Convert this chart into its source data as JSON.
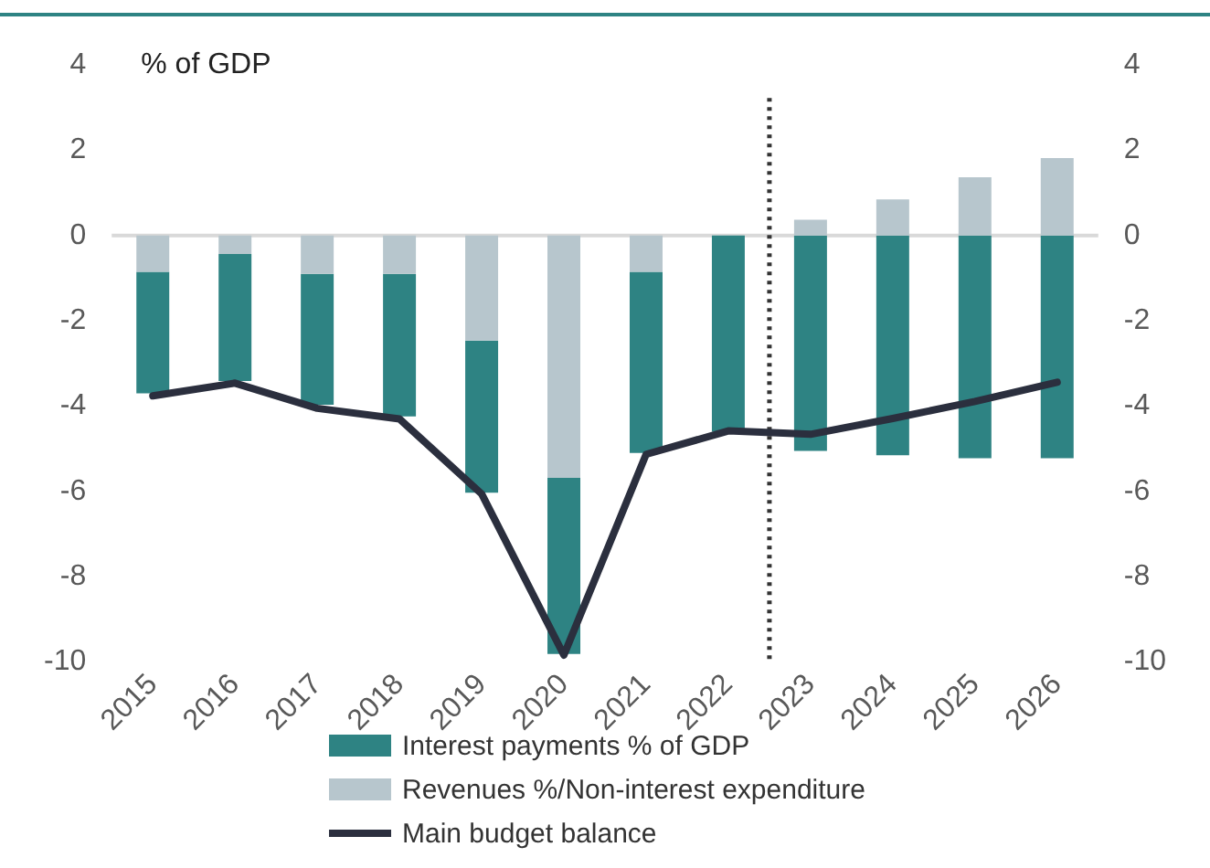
{
  "chart_data": {
    "type": "bar",
    "stacked": true,
    "ylabel": "% of GDP",
    "x": [
      2015,
      2016,
      2017,
      2018,
      2019,
      2020,
      2021,
      2022,
      2023,
      2024,
      2025,
      2026
    ],
    "xlim": [
      2014.5,
      2026.5
    ],
    "xticks": [
      2015,
      2016,
      2017,
      2018,
      2019,
      2020,
      2021,
      2022,
      2023,
      2024,
      2025,
      2026
    ],
    "ylim": [
      -10,
      4
    ],
    "yticks": [
      -10,
      -8,
      -6,
      -4,
      -2,
      0,
      2,
      4
    ],
    "y2lim": [
      -10,
      4
    ],
    "y2ticks": [
      -10,
      -8,
      -6,
      -4,
      -2,
      0,
      2,
      4
    ],
    "grid": false,
    "legend": "bottom",
    "ref_lines": [
      {
        "axis": "y",
        "value": 0,
        "color": "#d9d9d9",
        "line_style": "solid"
      },
      {
        "axis": "x",
        "value": 2022.5,
        "color": "#333333",
        "line_style": "dotted"
      }
    ],
    "series": [
      {
        "name": "Revenues %/Non-interest expenditure",
        "color": "#b7c6cd",
        "values": [
          -0.85,
          -0.43,
          -0.9,
          -0.9,
          -2.46,
          -5.68,
          -0.85,
          0,
          0.37,
          0.85,
          1.37,
          1.82
        ]
      },
      {
        "name": "Interest payments % of GDP",
        "color": "#2e8383",
        "values": [
          -2.85,
          -2.98,
          -3.07,
          -3.34,
          -3.57,
          -4.13,
          -4.25,
          -4.6,
          -5.05,
          -5.15,
          -5.22,
          -5.22
        ]
      },
      {
        "name": "Main budget balance",
        "type": "line",
        "color": "#2b2f3e",
        "values": [
          -3.76,
          -3.46,
          -4.05,
          -4.3,
          -6.06,
          -9.84,
          -5.13,
          -4.58,
          -4.66,
          -4.29,
          -3.89,
          -3.44
        ]
      }
    ]
  }
}
